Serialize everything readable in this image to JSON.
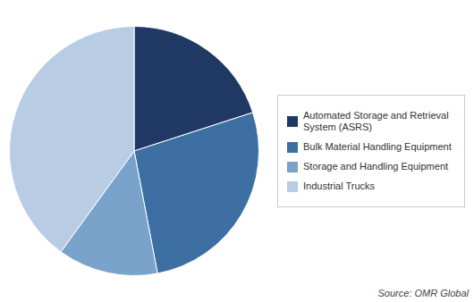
{
  "chart_data": {
    "type": "pie",
    "categories": [
      "Automated Storage and Retrieval\nSystem (ASRS)",
      "Bulk Material Handling Equipment",
      "Storage and Handling Equipment",
      "Industrial Trucks"
    ],
    "values": [
      20,
      27,
      13,
      40
    ],
    "colors": [
      "#1f3864",
      "#3d6fa3",
      "#7aa3cc",
      "#b8cce4"
    ],
    "legend": "right",
    "annotations": [
      "Source: OMR Global"
    ]
  }
}
